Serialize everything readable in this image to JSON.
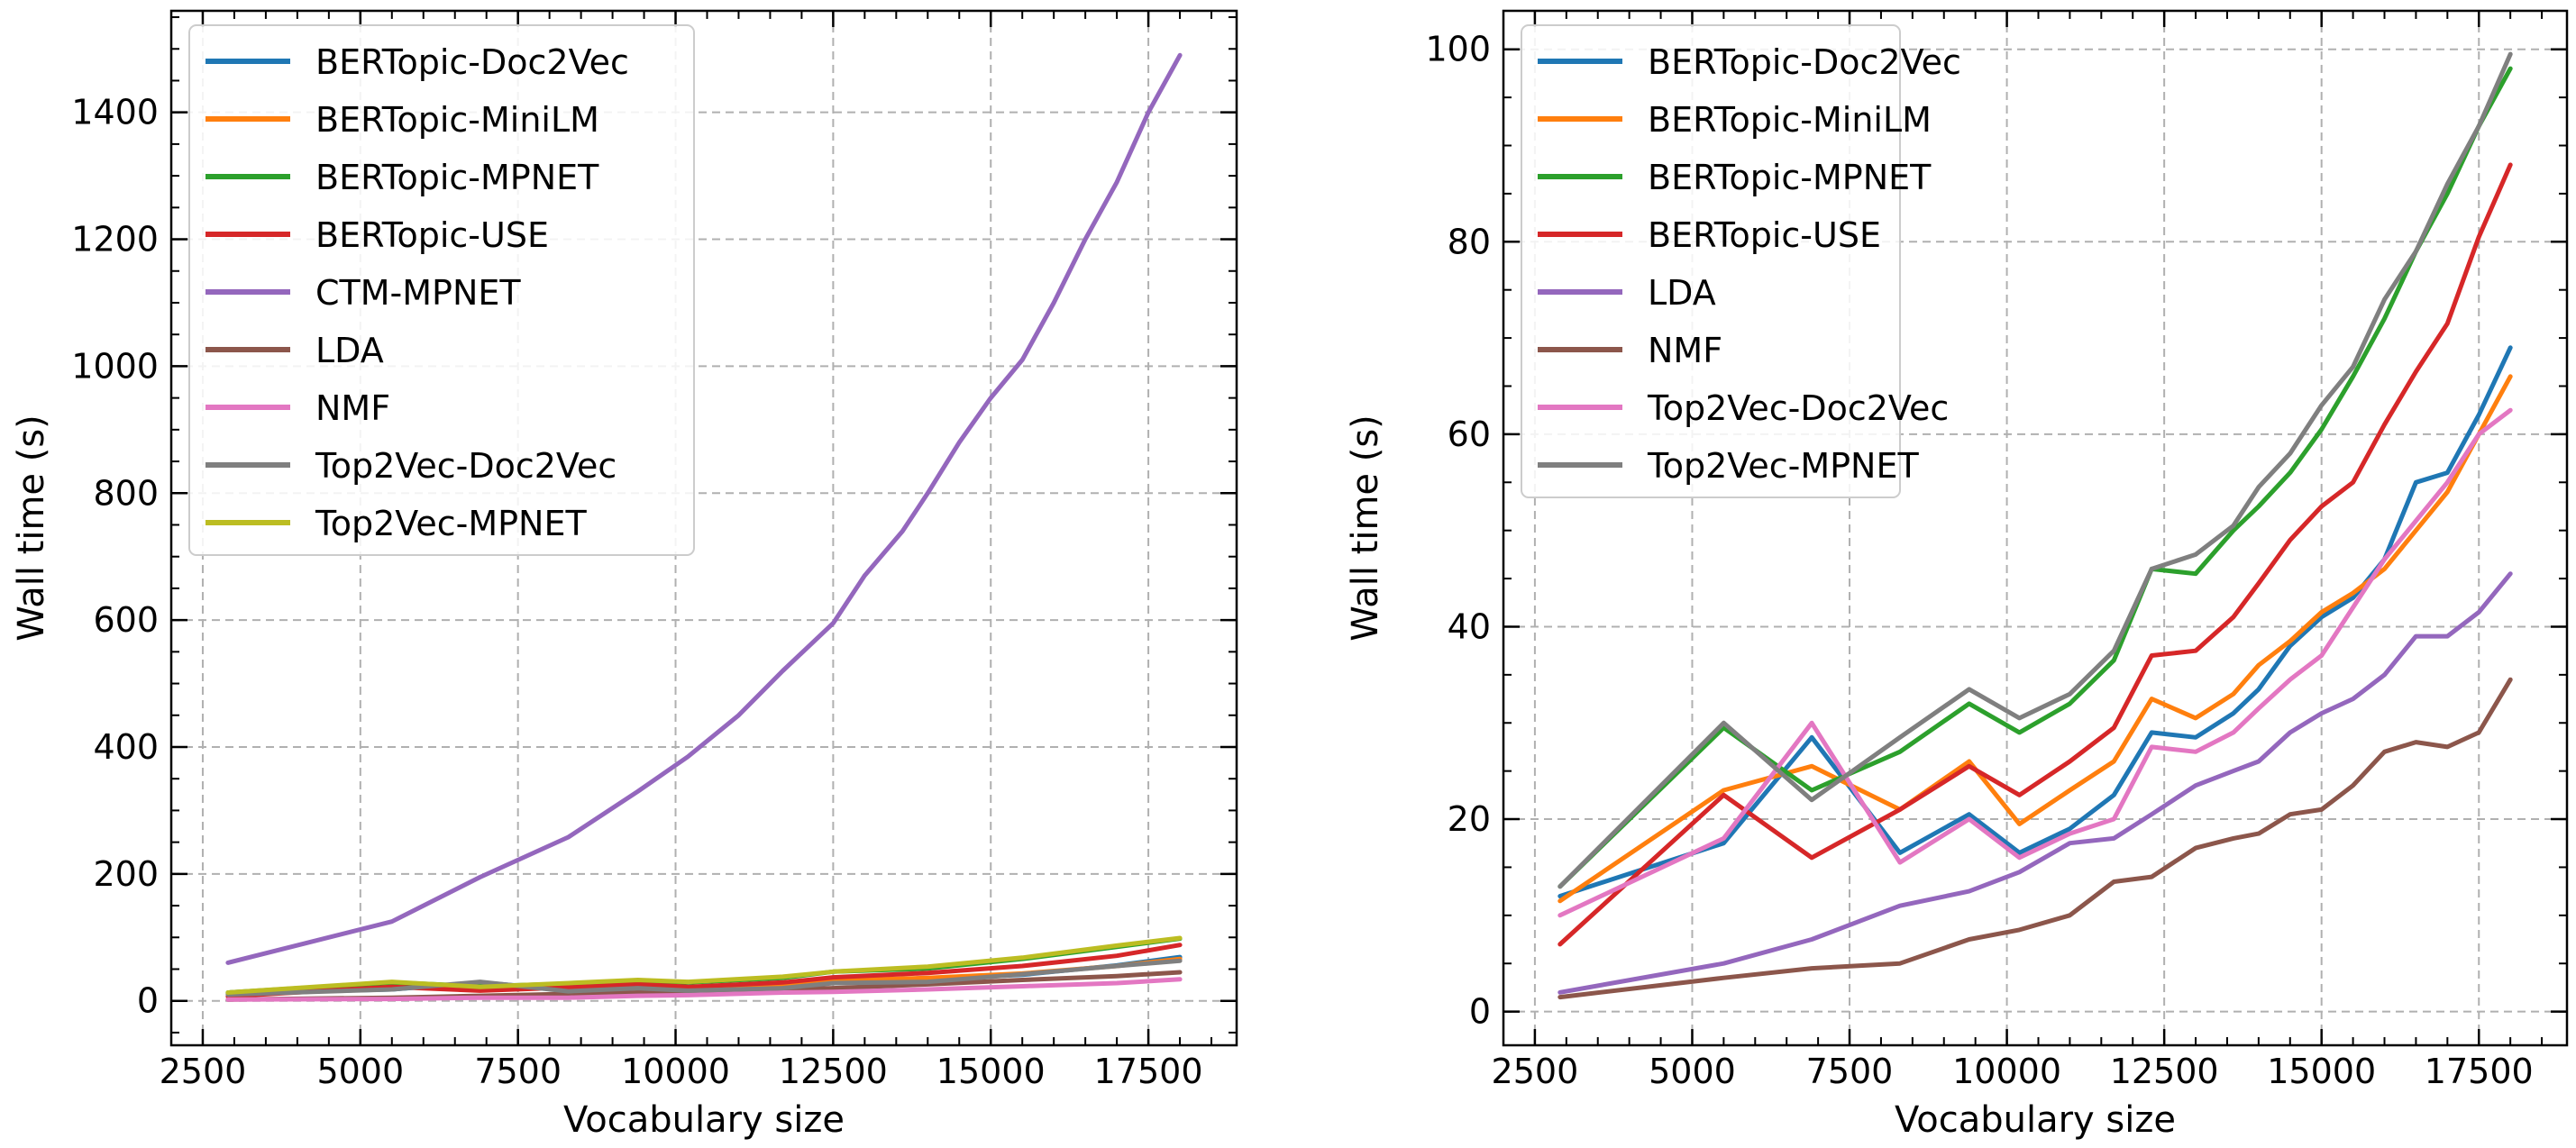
{
  "chart_data": [
    {
      "type": "line",
      "xlabel": "Vocabulary size",
      "ylabel": "Wall time (s)",
      "xlim": [
        2000,
        18900
      ],
      "ylim": [
        -70,
        1560
      ],
      "xticks": [
        2500,
        5000,
        7500,
        10000,
        12500,
        15000,
        17500
      ],
      "xtick_labels": [
        "2500",
        "5000",
        "7500",
        "10000",
        "12500",
        "15000",
        "17500"
      ],
      "yticks": [
        0,
        200,
        400,
        600,
        800,
        1000,
        1200,
        1400
      ],
      "ytick_labels": [
        "0",
        "200",
        "400",
        "600",
        "800",
        "1000",
        "1200",
        "1400"
      ],
      "grid": true,
      "legend_position": "top-left",
      "series": [
        {
          "name": "BERTopic-Doc2Vec",
          "color": "#1f77b4",
          "x": [
            2900,
            5500,
            6900,
            8300,
            9400,
            10200,
            11700,
            12500,
            14000,
            15500,
            17000,
            18000
          ],
          "y": [
            12,
            18,
            29,
            17,
            21,
            17,
            23,
            29,
            34,
            41,
            56,
            69
          ]
        },
        {
          "name": "BERTopic-MiniLM",
          "color": "#ff7f0e",
          "x": [
            2900,
            5500,
            6900,
            8300,
            9400,
            10200,
            11700,
            12500,
            14000,
            15500,
            17000,
            18000
          ],
          "y": [
            12,
            23,
            25,
            21,
            25,
            20,
            26,
            32,
            36,
            43,
            55,
            66
          ]
        },
        {
          "name": "BERTopic-MPNET",
          "color": "#2ca02c",
          "x": [
            2900,
            5500,
            6900,
            8300,
            9400,
            10200,
            11700,
            12500,
            14000,
            15500,
            17000,
            18000
          ],
          "y": [
            13,
            29,
            23,
            27,
            32,
            29,
            36,
            46,
            51,
            66,
            85,
            98
          ]
        },
        {
          "name": "BERTopic-USE",
          "color": "#d62728",
          "x": [
            2900,
            5500,
            6900,
            8300,
            9400,
            10200,
            11700,
            12500,
            14000,
            15500,
            17000,
            18000
          ],
          "y": [
            7,
            22,
            16,
            21,
            26,
            22,
            29,
            37,
            44,
            55,
            71,
            88
          ]
        },
        {
          "name": "CTM-MPNET",
          "color": "#9467bd",
          "x": [
            2900,
            5500,
            6900,
            8300,
            9400,
            10200,
            11000,
            11700,
            12500,
            13000,
            13600,
            14000,
            14500,
            15000,
            15500,
            16000,
            16500,
            17000,
            17500,
            18000
          ],
          "y": [
            60,
            125,
            195,
            258,
            330,
            385,
            450,
            520,
            595,
            670,
            740,
            800,
            880,
            950,
            1010,
            1100,
            1200,
            1290,
            1400,
            1490
          ]
        },
        {
          "name": "LDA",
          "color": "#8c564b",
          "x": [
            2900,
            5500,
            6900,
            8300,
            9400,
            10200,
            11700,
            12500,
            14000,
            15500,
            17000,
            18000
          ],
          "y": [
            2,
            5,
            8,
            11,
            13,
            15,
            18,
            20,
            26,
            33,
            39,
            45
          ]
        },
        {
          "name": "NMF",
          "color": "#e377c2",
          "x": [
            2900,
            5500,
            6900,
            8300,
            9400,
            10200,
            11700,
            12500,
            14000,
            15500,
            17000,
            18000
          ],
          "y": [
            2,
            3,
            5,
            5,
            8,
            9,
            13,
            14,
            18,
            23,
            28,
            34
          ]
        },
        {
          "name": "Top2Vec-Doc2Vec",
          "color": "#7f7f7f",
          "x": [
            2900,
            5500,
            6900,
            8300,
            9400,
            10200,
            11700,
            12500,
            14000,
            15500,
            17000,
            18000
          ],
          "y": [
            10,
            18,
            30,
            15,
            20,
            16,
            20,
            28,
            30,
            42,
            55,
            63
          ]
        },
        {
          "name": "Top2Vec-MPNET",
          "color": "#bcbd22",
          "x": [
            2900,
            5500,
            6900,
            8300,
            9400,
            10200,
            11700,
            12500,
            14000,
            15500,
            17000,
            18000
          ],
          "y": [
            13,
            30,
            22,
            28,
            33,
            30,
            38,
            46,
            54,
            68,
            87,
            99
          ]
        }
      ]
    },
    {
      "type": "line",
      "xlabel": "Vocabulary size",
      "ylabel": "Wall time (s)",
      "xlim": [
        2000,
        18900
      ],
      "ylim": [
        -3.5,
        104
      ],
      "xticks": [
        2500,
        5000,
        7500,
        10000,
        12500,
        15000,
        17500
      ],
      "xtick_labels": [
        "2500",
        "5000",
        "7500",
        "10000",
        "12500",
        "15000",
        "17500"
      ],
      "yticks": [
        0,
        20,
        40,
        60,
        80,
        100
      ],
      "ytick_labels": [
        "0",
        "20",
        "40",
        "60",
        "80",
        "100"
      ],
      "grid": true,
      "legend_position": "top-left",
      "series": [
        {
          "name": "BERTopic-Doc2Vec",
          "color": "#1f77b4",
          "x": [
            2900,
            5500,
            6900,
            8300,
            9400,
            10200,
            11000,
            11700,
            12300,
            13000,
            13600,
            14000,
            14500,
            15000,
            15500,
            16000,
            16500,
            17000,
            17500,
            18000
          ],
          "y": [
            12,
            17.5,
            28.5,
            16.5,
            20.5,
            16.5,
            19,
            22.5,
            29,
            28.5,
            31,
            33.5,
            38,
            41,
            43,
            47,
            55,
            56,
            62,
            69
          ]
        },
        {
          "name": "BERTopic-MiniLM",
          "color": "#ff7f0e",
          "x": [
            2900,
            5500,
            6900,
            8300,
            9400,
            10200,
            11000,
            11700,
            12300,
            13000,
            13600,
            14000,
            14500,
            15000,
            15500,
            16000,
            16500,
            17000,
            17500,
            18000
          ],
          "y": [
            11.5,
            23,
            25.5,
            21,
            26,
            19.5,
            23,
            26,
            32.5,
            30.5,
            33,
            36,
            38.5,
            41.5,
            43.5,
            46,
            50,
            54,
            60,
            66
          ]
        },
        {
          "name": "BERTopic-MPNET",
          "color": "#2ca02c",
          "x": [
            2900,
            5500,
            6900,
            8300,
            9400,
            10200,
            11000,
            11700,
            12300,
            13000,
            13600,
            14000,
            14500,
            15000,
            15500,
            16000,
            16500,
            17000,
            17500,
            18000
          ],
          "y": [
            13,
            29.5,
            23,
            27,
            32,
            29,
            32,
            36.5,
            46,
            45.5,
            50,
            52.5,
            56,
            60.5,
            66,
            72,
            79,
            85,
            92,
            98
          ]
        },
        {
          "name": "BERTopic-USE",
          "color": "#d62728",
          "x": [
            2900,
            5500,
            6900,
            8300,
            9400,
            10200,
            11000,
            11700,
            12300,
            13000,
            13600,
            14000,
            14500,
            15000,
            15500,
            16000,
            16500,
            17000,
            17500,
            18000
          ],
          "y": [
            7,
            22.5,
            16,
            21,
            25.5,
            22.5,
            26,
            29.5,
            37,
            37.5,
            41,
            44.5,
            49,
            52.5,
            55,
            61,
            66.5,
            71.5,
            80.5,
            88
          ]
        },
        {
          "name": "LDA",
          "color": "#9467bd",
          "x": [
            2900,
            5500,
            6900,
            8300,
            9400,
            10200,
            11000,
            11700,
            12300,
            13000,
            13600,
            14000,
            14500,
            15000,
            15500,
            16000,
            16500,
            17000,
            17500,
            18000
          ],
          "y": [
            2,
            5,
            7.5,
            11,
            12.5,
            14.5,
            17.5,
            18,
            20.5,
            23.5,
            25,
            26,
            29,
            31,
            32.5,
            35,
            39,
            39,
            41.5,
            45.5
          ]
        },
        {
          "name": "NMF",
          "color": "#8c564b",
          "x": [
            2900,
            5500,
            6900,
            8300,
            9400,
            10200,
            11000,
            11700,
            12300,
            13000,
            13600,
            14000,
            14500,
            15000,
            15500,
            16000,
            16500,
            17000,
            17500,
            18000
          ],
          "y": [
            1.5,
            3.5,
            4.5,
            5,
            7.5,
            8.5,
            10,
            13.5,
            14,
            17,
            18,
            18.5,
            20.5,
            21,
            23.5,
            27,
            28,
            27.5,
            29,
            34.5
          ]
        },
        {
          "name": "Top2Vec-Doc2Vec",
          "color": "#e377c2",
          "x": [
            2900,
            5500,
            6900,
            8300,
            9400,
            10200,
            11000,
            11700,
            12300,
            13000,
            13600,
            14000,
            14500,
            15000,
            15500,
            16000,
            16500,
            17000,
            17500,
            18000
          ],
          "y": [
            10,
            18,
            30,
            15.5,
            20,
            16,
            18.5,
            20,
            27.5,
            27,
            29,
            31.5,
            34.5,
            37,
            42,
            47,
            51,
            55,
            60,
            62.5
          ]
        },
        {
          "name": "Top2Vec-MPNET",
          "color": "#7f7f7f",
          "x": [
            2900,
            5500,
            6900,
            8300,
            9400,
            10200,
            11000,
            11700,
            12300,
            13000,
            13600,
            14000,
            14500,
            15000,
            15500,
            16000,
            16500,
            17000,
            17500,
            18000
          ],
          "y": [
            13,
            30,
            22,
            28.5,
            33.5,
            30.5,
            33,
            37.5,
            46,
            47.5,
            50.5,
            54.5,
            58,
            63,
            67,
            74,
            79,
            86,
            92,
            99.5
          ]
        }
      ]
    }
  ]
}
